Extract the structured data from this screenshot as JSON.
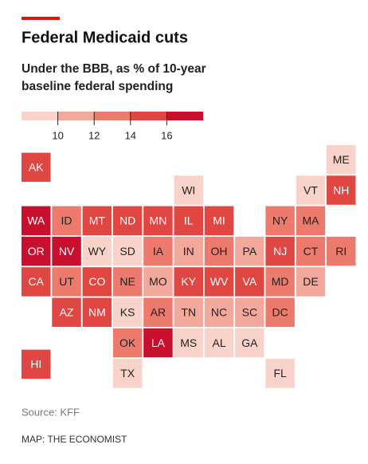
{
  "header": {
    "title": "Federal Medicaid cuts",
    "subtitle": [
      "Under the BBB, as % of 10-year",
      "baseline federal spending"
    ]
  },
  "legend": {
    "ticks": [
      10,
      12,
      14,
      16
    ],
    "colors": [
      "#f9d3ca",
      "#f3a89c",
      "#ec7a6d",
      "#e04743",
      "#c8102e"
    ]
  },
  "states": [
    {
      "name": "ME",
      "color": "#f9d3ca"
    },
    {
      "name": "AK",
      "color": "#e04743"
    },
    {
      "name": "WI",
      "color": "#f9d3ca"
    },
    {
      "name": "VT",
      "color": "#f9d3ca"
    },
    {
      "name": "NH",
      "color": "#e04743"
    },
    {
      "name": "WA",
      "color": "#c8102e"
    },
    {
      "name": "ID",
      "color": "#ec7a6d"
    },
    {
      "name": "MT",
      "color": "#e04743"
    },
    {
      "name": "ND",
      "color": "#e04743"
    },
    {
      "name": "MN",
      "color": "#e04743"
    },
    {
      "name": "IL",
      "color": "#e04743"
    },
    {
      "name": "MI",
      "color": "#e04743"
    },
    {
      "name": "NY",
      "color": "#ec7a6d"
    },
    {
      "name": "MA",
      "color": "#ec7a6d"
    },
    {
      "name": "OR",
      "color": "#c8102e"
    },
    {
      "name": "NV",
      "color": "#c8102e"
    },
    {
      "name": "WY",
      "color": "#f9d3ca"
    },
    {
      "name": "SD",
      "color": "#f9d3ca"
    },
    {
      "name": "IA",
      "color": "#ec7a6d"
    },
    {
      "name": "IN",
      "color": "#f3a89c"
    },
    {
      "name": "OH",
      "color": "#ec7a6d"
    },
    {
      "name": "PA",
      "color": "#f3a89c"
    },
    {
      "name": "NJ",
      "color": "#e04743"
    },
    {
      "name": "CT",
      "color": "#ec7a6d"
    },
    {
      "name": "RI",
      "color": "#ec7a6d"
    },
    {
      "name": "CA",
      "color": "#e04743"
    },
    {
      "name": "UT",
      "color": "#ec7a6d"
    },
    {
      "name": "CO",
      "color": "#e04743"
    },
    {
      "name": "NE",
      "color": "#ec7a6d"
    },
    {
      "name": "MO",
      "color": "#f3a89c"
    },
    {
      "name": "KY",
      "color": "#e04743"
    },
    {
      "name": "WV",
      "color": "#e04743"
    },
    {
      "name": "VA",
      "color": "#e04743"
    },
    {
      "name": "MD",
      "color": "#ec7a6d"
    },
    {
      "name": "DE",
      "color": "#f3a89c"
    },
    {
      "name": "AZ",
      "color": "#e04743"
    },
    {
      "name": "NM",
      "color": "#e04743"
    },
    {
      "name": "KS",
      "color": "#f9d3ca"
    },
    {
      "name": "AR",
      "color": "#ec7a6d"
    },
    {
      "name": "TN",
      "color": "#f3a89c"
    },
    {
      "name": "NC",
      "color": "#f3a89c"
    },
    {
      "name": "SC",
      "color": "#f3a89c"
    },
    {
      "name": "DC",
      "color": "#ec7a6d"
    },
    {
      "name": "OK",
      "color": "#ec7a6d"
    },
    {
      "name": "LA",
      "color": "#c8102e"
    },
    {
      "name": "MS",
      "color": "#f9d3ca"
    },
    {
      "name": "AL",
      "color": "#f9d3ca"
    },
    {
      "name": "GA",
      "color": "#f9d3ca"
    },
    {
      "name": "HI",
      "color": "#e04743"
    },
    {
      "name": "TX",
      "color": "#f9d3ca"
    },
    {
      "name": "FL",
      "color": "#f9d3ca"
    }
  ],
  "footer": {
    "source": "Source: KFF",
    "credit": "MAP: THE ECONOMIST"
  }
}
